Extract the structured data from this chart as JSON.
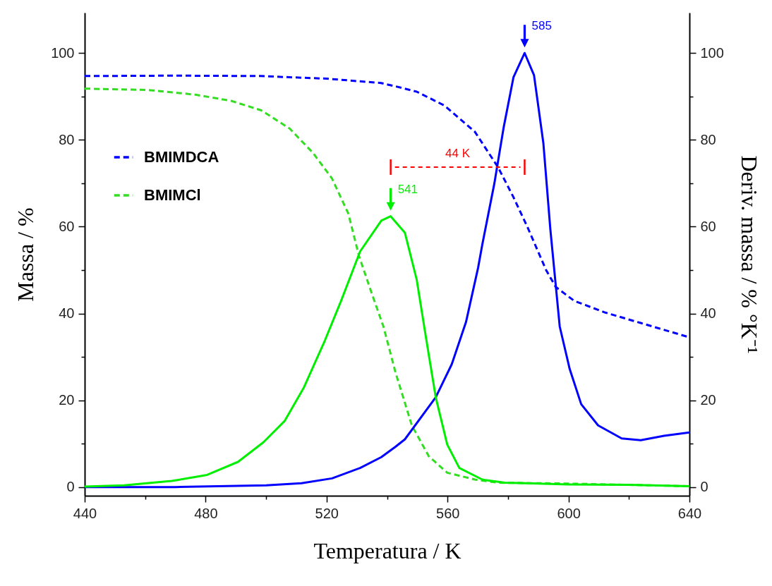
{
  "chart_data": {
    "type": "line",
    "xlabel": "Temperatura / K",
    "ylabel": "Massa / %",
    "y2label": "Deriv. massa / % °K⁻¹",
    "xlim": [
      440,
      640
    ],
    "xticks": [
      440,
      {
        "value": 460,
        "label": null
      },
      480,
      {
        "value": 500,
        "label": null
      },
      520,
      {
        "value": 540,
        "label": null
      },
      560,
      {
        "value": 580,
        "label": null
      },
      600,
      {
        "value": 620,
        "label": null
      },
      640
    ],
    "ylim": [
      -2,
      109.3
    ],
    "yticks": [
      0,
      {
        "value": 10,
        "label": null
      },
      20,
      {
        "value": 30,
        "label": null
      },
      40,
      {
        "value": 50,
        "label": null
      },
      60,
      {
        "value": 70,
        "label": null
      },
      80,
      {
        "value": 90,
        "label": null
      },
      100
    ],
    "y2lim": [
      -2,
      109.3
    ],
    "y2ticks": [
      0,
      {
        "value": 10,
        "label": null
      },
      20,
      {
        "value": 30,
        "label": null
      },
      40,
      {
        "value": 50,
        "label": null
      },
      60,
      {
        "value": 70,
        "label": null
      },
      80,
      {
        "value": 90,
        "label": null
      },
      100
    ],
    "grid": false,
    "legend": "left",
    "marker": "none",
    "series": [
      {
        "name": "BMIMDCA",
        "color": "#0000ff",
        "line_style": "dashed",
        "x": [
          440,
          470,
          498,
          520,
          538,
          543,
          549.8,
          559,
          569,
          576.7,
          581.8,
          586.5,
          592.6,
          595.8,
          601.9,
          612.2,
          623.9,
          640
        ],
        "values": [
          94.7,
          94.8,
          94.7,
          94.1,
          93.1,
          92.3,
          91.1,
          87.9,
          81.9,
          73.7,
          66.8,
          59.8,
          50,
          46.1,
          42.9,
          40.2,
          37.8,
          34.5
        ]
      },
      {
        "name": "BMIMCl",
        "color": "#33dd22",
        "line_style": "dashed",
        "x": [
          440,
          461,
          476.7,
          488.4,
          498.4,
          507.8,
          515.5,
          521.8,
          527.2,
          530.7,
          535,
          538.8,
          542.8,
          548.2,
          553.8,
          559.9,
          569.3,
          577,
          600,
          620,
          640
        ],
        "values": [
          91.8,
          91.5,
          90.4,
          89,
          86.8,
          82.6,
          77,
          71.1,
          63,
          53.3,
          44.5,
          37,
          26.4,
          14.2,
          7.1,
          3.3,
          1.7,
          1,
          0.8,
          0.5,
          0.2
        ]
      },
      {
        "color": "#0000ff",
        "line_style": "solid",
        "axis": "y2",
        "x": [
          440,
          470,
          500,
          511.7,
          521.8,
          531.1,
          538.1,
          542.8,
          545.9,
          556.1,
          561.4,
          566.1,
          570.1,
          571.5,
          575.5,
          578.6,
          581.8,
          585.5,
          588.6,
          591.7,
          594,
          597.1,
          600.4,
          604.2,
          609.8,
          617.6,
          623.9,
          631.6,
          640
        ],
        "values": [
          0,
          0,
          0.4,
          0.9,
          2,
          4.4,
          6.9,
          9.3,
          11,
          20.7,
          28.3,
          38,
          50.5,
          55.9,
          70,
          83,
          94.4,
          100,
          94.9,
          79.2,
          59.4,
          37,
          27.2,
          19.1,
          14.2,
          11.2,
          10.8,
          11.8,
          12.6
        ]
      },
      {
        "color": "#00ee00",
        "line_style": "solid",
        "axis": "y2",
        "x": [
          440,
          453,
          468.8,
          480.5,
          490.7,
          499.1,
          506.1,
          512.4,
          519.4,
          524.8,
          531.1,
          538.1,
          541.2,
          545.9,
          549.8,
          552.9,
          556.1,
          559.9,
          563.9,
          571.6,
          579,
          600,
          620,
          640
        ],
        "values": [
          0.1,
          0.4,
          1.4,
          2.8,
          5.8,
          10.3,
          15.2,
          22.8,
          33.7,
          42.9,
          54.3,
          61.4,
          62.4,
          58.6,
          47.8,
          34.3,
          20.7,
          9.8,
          4.4,
          1.7,
          1,
          0.6,
          0.5,
          0.2
        ]
      }
    ],
    "annotations": [
      {
        "text": "585",
        "x": 585.5,
        "y": 100
      },
      {
        "text": "541",
        "x": 541.2,
        "y": 62.4
      },
      "44 K"
    ]
  }
}
